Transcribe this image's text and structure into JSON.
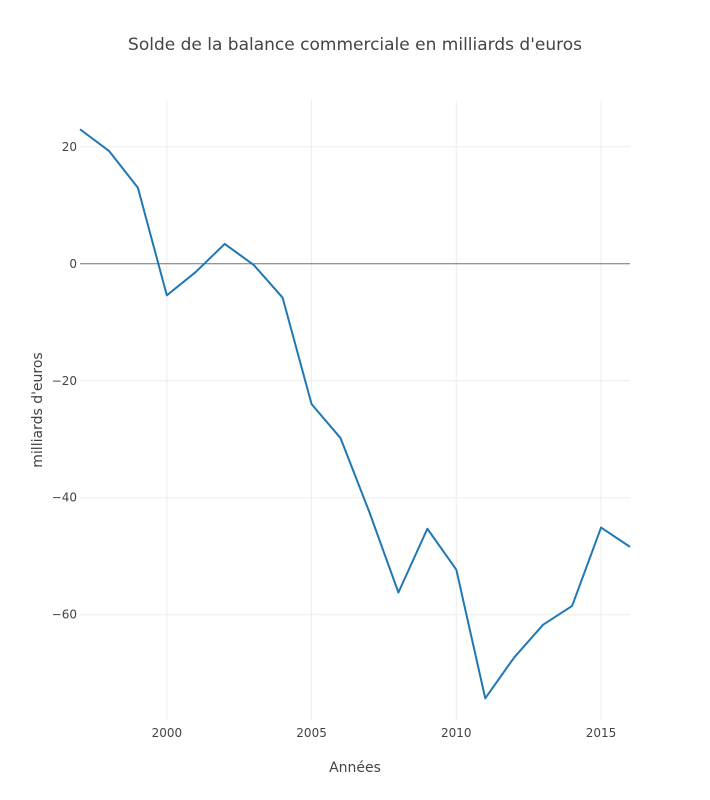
{
  "chart_data": {
    "type": "line",
    "title": "Solde de la balance commerciale en milliards d'euros",
    "xlabel": "Années",
    "ylabel": "milliards d'euros",
    "xlim": [
      1997,
      2016
    ],
    "ylim": [
      -78,
      28
    ],
    "x_ticks": [
      2000,
      2005,
      2010,
      2015
    ],
    "y_ticks": [
      20,
      0,
      -20,
      -40,
      -60
    ],
    "y_tick_labels": [
      "20",
      "0",
      "−20",
      "−40",
      "−60"
    ],
    "grid": true,
    "legend": "none",
    "series": [
      {
        "color": "#1f77b4",
        "x": [
          1997,
          1998,
          1999,
          2000,
          2001,
          2002,
          2003,
          2004,
          2005,
          2006,
          2007,
          2008,
          2009,
          2010,
          2011,
          2012,
          2013,
          2014,
          2015,
          2016
        ],
        "y": [
          23,
          19.3,
          13,
          -5.4,
          -1.4,
          3.4,
          -0.2,
          -5.8,
          -24,
          -29.8,
          -42.5,
          -56.2,
          -45.3,
          -52.3,
          -74.3,
          -67.3,
          -61.7,
          -58.5,
          -45.1,
          -48.4
        ]
      }
    ]
  }
}
